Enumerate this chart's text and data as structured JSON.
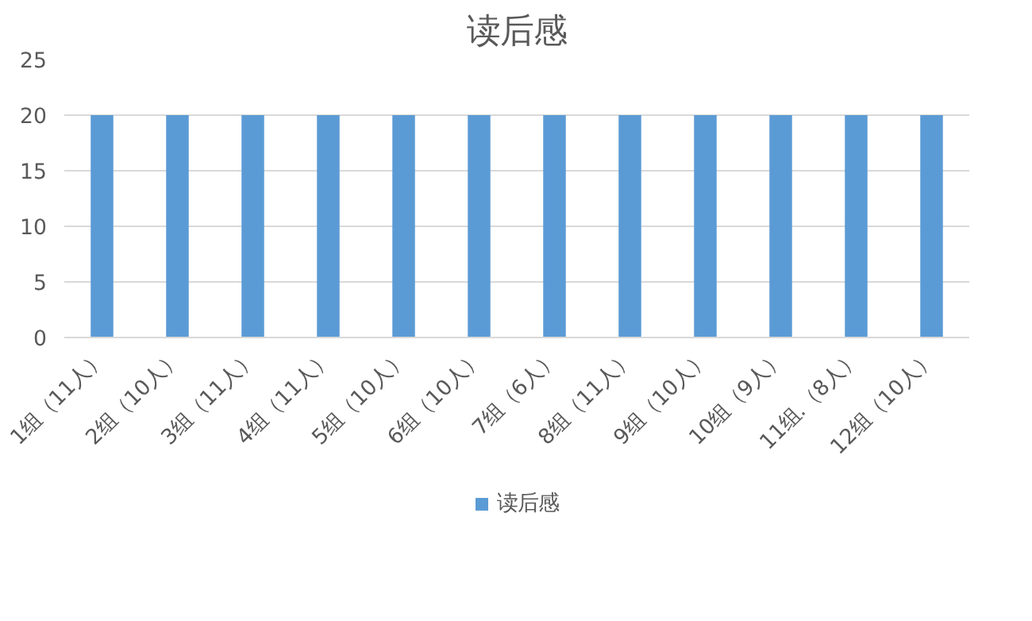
{
  "chart_data": {
    "type": "bar",
    "title": "读后感",
    "categories": [
      "1组（11人）",
      "2组（10人）",
      "3组（11人）",
      "4组（11人）",
      "5组（10人）",
      "6组（10人）",
      "7组（6人）",
      "8组（11人）",
      "9组（10人）",
      "10组（9人）",
      "11组.（8人）",
      "12组（10人）"
    ],
    "series": [
      {
        "name": "读后感",
        "color": "#5b9bd5",
        "values": [
          20,
          20,
          20,
          20,
          20,
          20,
          20,
          20,
          20,
          20,
          20,
          20
        ]
      }
    ],
    "ylim": [
      0,
      25
    ],
    "yticks": [
      0,
      5,
      10,
      15,
      20,
      25
    ],
    "grid": "y",
    "legend": "bottom"
  }
}
